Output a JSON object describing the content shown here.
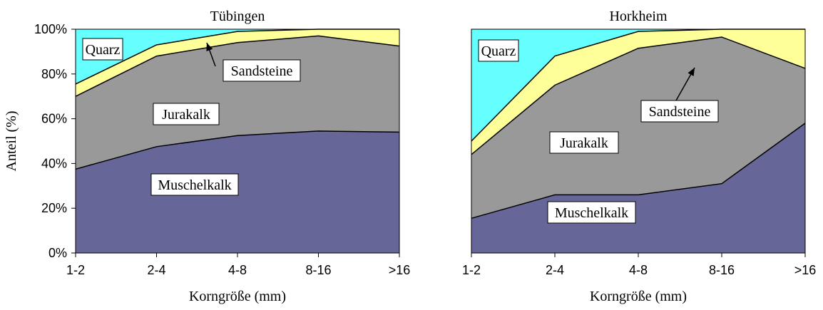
{
  "chart_data": [
    {
      "type": "area",
      "stacked": true,
      "title": "Tübingen",
      "xlabel": "Korngröße (mm)",
      "ylabel": "Anteil (%)",
      "ylim": [
        0,
        100
      ],
      "yticks": [
        "0%",
        "20%",
        "40%",
        "60%",
        "80%",
        "100%"
      ],
      "categories": [
        "1-2",
        "2-4",
        "4-8",
        "8-16",
        ">16"
      ],
      "series": [
        {
          "name": "Muschelkalk",
          "color": "#666699",
          "values": [
            37.5,
            47.5,
            52.5,
            54.5,
            54
          ]
        },
        {
          "name": "Jurakalk",
          "color": "#999999",
          "values": [
            32.5,
            40.5,
            41.5,
            42.5,
            38.5
          ]
        },
        {
          "name": "Sandsteine",
          "color": "#ffff99",
          "values": [
            5.5,
            5,
            5,
            3,
            7.5
          ]
        },
        {
          "name": "Quarz",
          "color": "#66ffff",
          "values": [
            24.5,
            7,
            1,
            0,
            0
          ]
        }
      ]
    },
    {
      "type": "area",
      "stacked": true,
      "title": "Horkheim",
      "xlabel": "Korngröße (mm)",
      "ylabel": "",
      "ylim": [
        0,
        100
      ],
      "categories": [
        "1-2",
        "2-4",
        "4-8",
        "8-16",
        ">16"
      ],
      "series": [
        {
          "name": "Muschelkalk",
          "color": "#666699",
          "values": [
            15.5,
            26,
            26,
            31,
            58
          ]
        },
        {
          "name": "Jurakalk",
          "color": "#999999",
          "values": [
            28.5,
            49,
            65.5,
            65.5,
            24.5
          ]
        },
        {
          "name": "Sandsteine",
          "color": "#ffff99",
          "values": [
            6,
            13,
            7.5,
            3.5,
            17.5
          ]
        },
        {
          "name": "Quarz",
          "color": "#66ffff",
          "values": [
            50,
            12,
            1,
            0,
            0
          ]
        }
      ]
    }
  ]
}
